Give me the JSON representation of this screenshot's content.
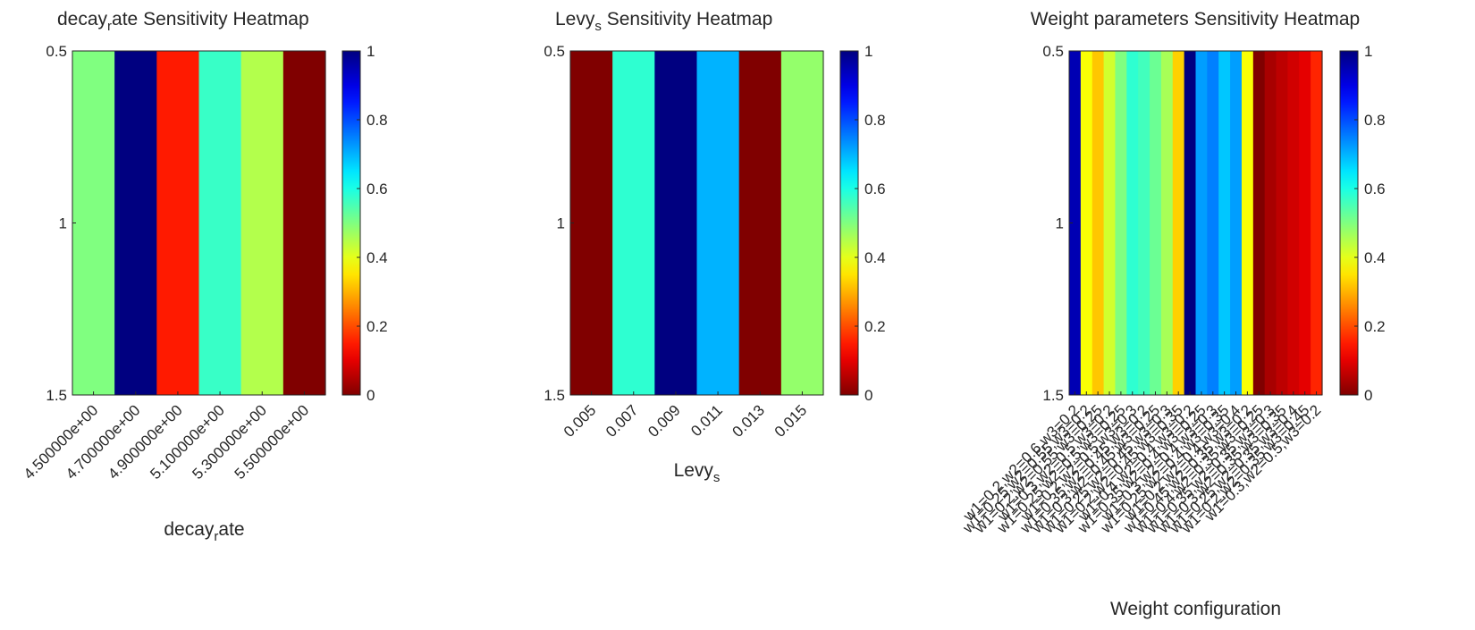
{
  "colormap": "jet",
  "chart_data": [
    {
      "type": "heatmap",
      "title_main": "decay",
      "title_sub": "r",
      "title_rest": "ate Sensitivity Heatmap",
      "xlabel_main": "decay",
      "xlabel_sub": "r",
      "xlabel_rest": "ate",
      "yticks": [
        "0.5",
        "1",
        "1.5"
      ],
      "ylim": [
        0.5,
        1.5
      ],
      "categories": [
        "4.500000e+00",
        "4.700000e+00",
        "4.900000e+00",
        "5.100000e+00",
        "5.300000e+00",
        "5.500000e+00"
      ],
      "values": [
        0.5,
        1.0,
        0.15,
        0.57,
        0.45,
        0.0
      ],
      "colorbar": {
        "ticks": [
          "0",
          "0.2",
          "0.4",
          "0.6",
          "0.8",
          "1"
        ],
        "range": [
          0,
          1
        ]
      }
    },
    {
      "type": "heatmap",
      "title_main": "Levy",
      "title_sub": "s",
      "title_rest": " Sensitivity Heatmap",
      "xlabel_main": "Levy",
      "xlabel_sub": "s",
      "xlabel_rest": "",
      "yticks": [
        "0.5",
        "1",
        "1.5"
      ],
      "ylim": [
        0.5,
        1.5
      ],
      "categories": [
        "0.005",
        "0.007",
        "0.009",
        "0.011",
        "0.013",
        "0.015"
      ],
      "values": [
        0.0,
        0.58,
        1.0,
        0.7,
        0.0,
        0.48
      ],
      "colorbar": {
        "ticks": [
          "0",
          "0.2",
          "0.4",
          "0.6",
          "0.8",
          "1"
        ],
        "range": [
          0,
          1
        ]
      }
    },
    {
      "type": "heatmap",
      "title_main": "Weight parameters Sensitivity Heatmap",
      "title_sub": "",
      "title_rest": "",
      "xlabel_main": "Weight configuration",
      "xlabel_sub": "",
      "xlabel_rest": "",
      "yticks": [
        "0.5",
        "1",
        "1.5"
      ],
      "ylim": [
        0.5,
        1.5
      ],
      "categories": [
        "w1=0.2,w2=0.6,w3=0.2",
        "w1=0.25,w2=0.55,w3=0.2",
        "w1=0.2,w2=0.55,w3=0.25",
        "w1=0.3,w2=0.5,w3=0.2",
        "w1=0.25,w2=0.5,w3=0.25",
        "w1=0.2,w2=0.5,w3=0.3",
        "w1=0.35,w2=0.45,w3=0.2",
        "w1=0.3,w2=0.45,w3=0.25",
        "w1=0.25,w2=0.45,w3=0.3",
        "w1=0.2,w2=0.45,w3=0.35",
        "w1=0.4,w2=0.4,w3=0.2",
        "w1=0.35,w2=0.4,w3=0.25",
        "w1=0.3,w2=0.4,w3=0.3",
        "w1=0.25,w2=0.4,w3=0.35",
        "w1=0.2,w2=0.4,w3=0.4",
        "w1=0.45,w2=0.35,w3=0.2",
        "w1=0.4,w2=0.35,w3=0.25",
        "w1=0.35,w2=0.35,w3=0.3",
        "w1=0.3,w2=0.35,w3=0.35",
        "w1=0.25,w2=0.35,w3=0.4",
        "w1=0.2,w2=0.35,w3=0.45",
        "w1=0.3,w2=0.5,w3=0.2"
      ],
      "values": [
        0.95,
        0.38,
        0.32,
        0.42,
        0.5,
        0.58,
        0.56,
        0.52,
        0.46,
        0.33,
        1.0,
        0.72,
        0.75,
        0.68,
        0.72,
        0.38,
        0.0,
        0.04,
        0.06,
        0.08,
        0.1,
        0.16
      ],
      "colorbar": {
        "ticks": [
          "0",
          "0.2",
          "0.4",
          "0.6",
          "0.8",
          "1"
        ],
        "range": [
          0,
          1
        ]
      }
    }
  ]
}
